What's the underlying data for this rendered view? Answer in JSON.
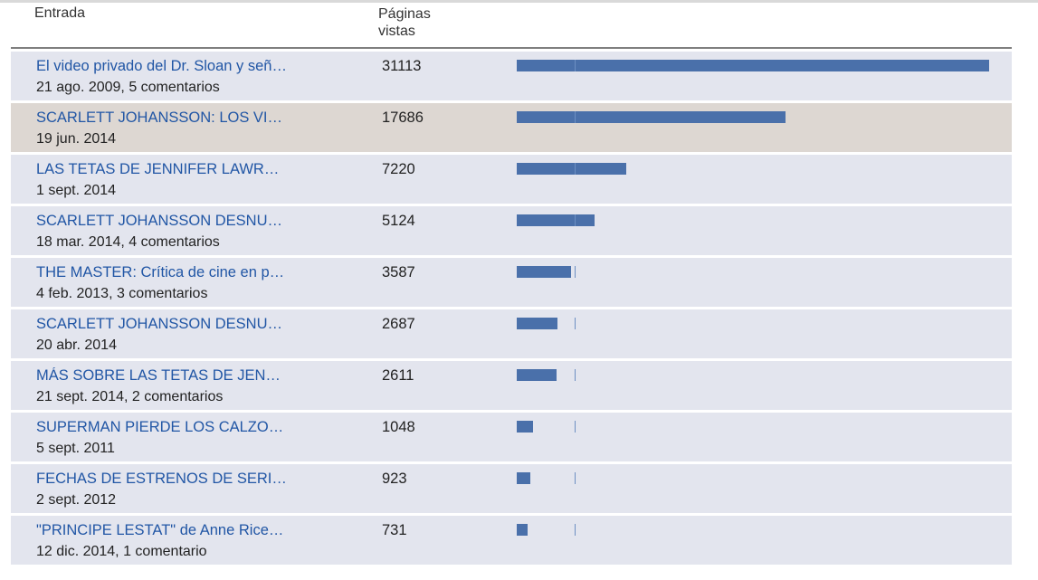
{
  "header": {
    "entry_label": "Entrada",
    "views_label_line1": "Páginas",
    "views_label_line2": "vistas"
  },
  "colors": {
    "link": "#2156a5",
    "bar": "#4a70aa",
    "row_shade": "#e3e5ee",
    "row_hover": "#ddd7d2"
  },
  "chart_data": {
    "type": "bar",
    "categories": [
      "El video privado del Dr. Sloan y señ…",
      "SCARLETT JOHANSSON: LOS VI…",
      "LAS TETAS DE JENNIFER LAWR…",
      "SCARLETT JOHANSSON DESNU…",
      "THE MASTER: Crítica de cine en p…",
      "SCARLETT JOHANSSON DESNU…",
      "MÁS SOBRE LAS TETAS DE JEN…",
      "SUPERMAN PIERDE LOS CALZO…",
      "FECHAS DE ESTRENOS DE SERI…",
      "\"PRINCIPE LESTAT\" de Anne Rice…"
    ],
    "values": [
      31113,
      17686,
      7220,
      5124,
      3587,
      2687,
      2611,
      1048,
      923,
      731
    ]
  },
  "rows": [
    {
      "title": "El video privado del Dr. Sloan y señ…",
      "meta": "21 ago. 2009, 5 comentarios",
      "views": "31113",
      "value": 31113
    },
    {
      "title": "SCARLETT JOHANSSON: LOS VI…",
      "meta": "19 jun. 2014",
      "views": "17686",
      "value": 17686
    },
    {
      "title": "LAS TETAS DE JENNIFER LAWR…",
      "meta": "1 sept. 2014",
      "views": "7220",
      "value": 7220
    },
    {
      "title": "SCARLETT JOHANSSON DESNU…",
      "meta": "18 mar. 2014, 4 comentarios",
      "views": "5124",
      "value": 5124
    },
    {
      "title": "THE MASTER: Crítica de cine en p…",
      "meta": "4 feb. 2013, 3 comentarios",
      "views": "3587",
      "value": 3587
    },
    {
      "title": "SCARLETT JOHANSSON DESNU…",
      "meta": "20 abr. 2014",
      "views": "2687",
      "value": 2687
    },
    {
      "title": "MÁS SOBRE LAS TETAS DE JEN…",
      "meta": "21 sept. 2014, 2 comentarios",
      "views": "2611",
      "value": 2611
    },
    {
      "title": "SUPERMAN PIERDE LOS CALZO…",
      "meta": "5 sept. 2011",
      "views": "1048",
      "value": 1048
    },
    {
      "title": "FECHAS DE ESTRENOS DE SERI…",
      "meta": "2 sept. 2012",
      "views": "923",
      "value": 923
    },
    {
      "title": "\"PRINCIPE LESTAT\" de Anne Rice…",
      "meta": "12 dic. 2014, 1 comentario",
      "views": "731",
      "value": 731
    }
  ]
}
